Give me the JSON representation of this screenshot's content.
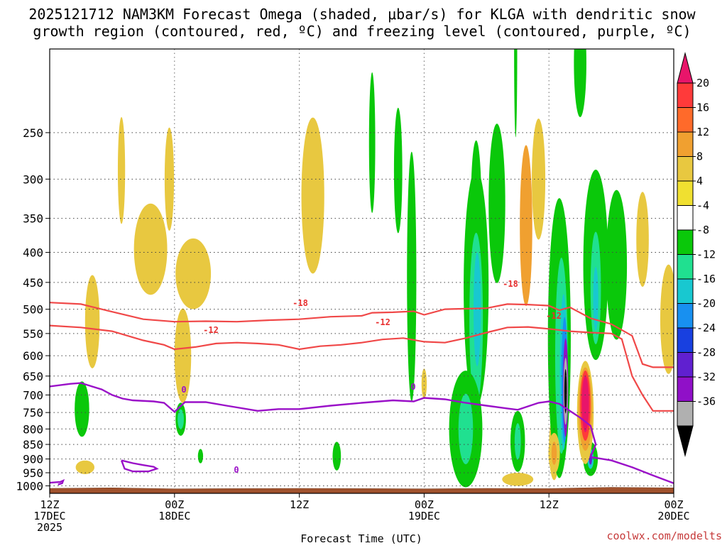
{
  "chart_data": {
    "type": "contour-cross-section",
    "title_line1": "2025121712 NAM3KM Forecast Omega (shaded, μbar/s) for KLGA with dendritic snow",
    "title_line2": "growth region (contoured, red, ºC) and freezing level (contoured, purple, ºC)",
    "xlabel": "Forecast Time (UTC)",
    "credit": "coolwx.com/modelts",
    "x_range_hours": [
      0,
      60
    ],
    "y_range_hpa": [
      1030,
      180
    ],
    "y_levels": [
      250,
      300,
      350,
      400,
      450,
      500,
      550,
      600,
      650,
      700,
      750,
      800,
      850,
      900,
      950,
      1000
    ],
    "y_tick_labels": [
      "250",
      "300",
      "350",
      "400",
      "450",
      "500",
      "550",
      "600",
      "650",
      "700",
      "750",
      "800",
      "850",
      "900",
      "950",
      "1000"
    ],
    "x_ticks": [
      {
        "hour": 0,
        "line1": "12Z",
        "line2": "17DEC",
        "line3": "2025"
      },
      {
        "hour": 12,
        "line1": "00Z",
        "line2": "18DEC",
        "line3": ""
      },
      {
        "hour": 24,
        "line1": "12Z",
        "line2": "",
        "line3": ""
      },
      {
        "hour": 36,
        "line1": "00Z",
        "line2": "19DEC",
        "line3": ""
      },
      {
        "hour": 48,
        "line1": "12Z",
        "line2": "",
        "line3": ""
      },
      {
        "hour": 60,
        "line1": "00Z",
        "line2": "20DEC",
        "line3": ""
      }
    ],
    "colorbar": {
      "labels": [
        "20",
        "16",
        "12",
        "8",
        "4",
        "-4",
        "-8",
        "-12",
        "-16",
        "-20",
        "-24",
        "-28",
        "-32",
        "-36"
      ],
      "colors": [
        "#e8156a",
        "#ff3a3a",
        "#ff6a2a",
        "#f0a030",
        "#e8c840",
        "#f0e030",
        "#ffffff",
        "#0ac80a",
        "#20e090",
        "#18c8d0",
        "#1890f0",
        "#1840e0",
        "#6020d0",
        "#9010c8",
        "#b0b0b0",
        "#000000"
      ]
    },
    "contour_labels": {
      "dgz_cold": "-18",
      "dgz_warm": "-12",
      "freezing": "0"
    },
    "dgz_minus18_hpa": [
      [
        0,
        487
      ],
      [
        3,
        490
      ],
      [
        6,
        505
      ],
      [
        9,
        520
      ],
      [
        12,
        525
      ],
      [
        15,
        524
      ],
      [
        18,
        525
      ],
      [
        21,
        522
      ],
      [
        24,
        520
      ],
      [
        27,
        515
      ],
      [
        30,
        513
      ],
      [
        31,
        507
      ],
      [
        33,
        506
      ],
      [
        35,
        504
      ],
      [
        36,
        511
      ],
      [
        38,
        500
      ],
      [
        40,
        499
      ],
      [
        42,
        498
      ],
      [
        44,
        490
      ],
      [
        46,
        491
      ],
      [
        48,
        493
      ],
      [
        49,
        502
      ],
      [
        50,
        496
      ],
      [
        52,
        518
      ],
      [
        54,
        530
      ],
      [
        56,
        555
      ],
      [
        57,
        620
      ],
      [
        58,
        628
      ],
      [
        60,
        628
      ]
    ],
    "dgz_minus12_hpa": [
      [
        0,
        533
      ],
      [
        3,
        537
      ],
      [
        6,
        545
      ],
      [
        9,
        565
      ],
      [
        11,
        575
      ],
      [
        12,
        585
      ],
      [
        14,
        580
      ],
      [
        16,
        572
      ],
      [
        18,
        570
      ],
      [
        20,
        572
      ],
      [
        22,
        575
      ],
      [
        24,
        585
      ],
      [
        26,
        578
      ],
      [
        28,
        575
      ],
      [
        30,
        570
      ],
      [
        32,
        563
      ],
      [
        34,
        560
      ],
      [
        36,
        568
      ],
      [
        38,
        570
      ],
      [
        40,
        560
      ],
      [
        42,
        548
      ],
      [
        44,
        537
      ],
      [
        46,
        536
      ],
      [
        48,
        540
      ],
      [
        50,
        545
      ],
      [
        52,
        548
      ],
      [
        54,
        550
      ],
      [
        55,
        562
      ],
      [
        56,
        650
      ],
      [
        57,
        700
      ],
      [
        58,
        745
      ],
      [
        60,
        745
      ]
    ],
    "freezing_hpa": [
      [
        0,
        677
      ],
      [
        2,
        670
      ],
      [
        3,
        668
      ],
      [
        5,
        685
      ],
      [
        6,
        700
      ],
      [
        7,
        710
      ],
      [
        8,
        715
      ],
      [
        10,
        718
      ],
      [
        11,
        722
      ],
      [
        12,
        748
      ],
      [
        13,
        720
      ],
      [
        15,
        720
      ],
      [
        17,
        730
      ],
      [
        20,
        745
      ],
      [
        22,
        740
      ],
      [
        24,
        740
      ],
      [
        27,
        730
      ],
      [
        30,
        722
      ],
      [
        33,
        715
      ],
      [
        35,
        718
      ],
      [
        36,
        708
      ],
      [
        38,
        712
      ],
      [
        40,
        722
      ],
      [
        42,
        730
      ],
      [
        44,
        738
      ],
      [
        45,
        742
      ],
      [
        46,
        732
      ],
      [
        47,
        722
      ],
      [
        48,
        718
      ],
      [
        49,
        725
      ],
      [
        50,
        745
      ],
      [
        51,
        765
      ],
      [
        52,
        790
      ],
      [
        52.5,
        850
      ],
      [
        52,
        893
      ],
      [
        54,
        905
      ],
      [
        56,
        930
      ],
      [
        58,
        960
      ],
      [
        60,
        990
      ]
    ],
    "freezing_loop_hpa": [
      [
        6.9,
        905
      ],
      [
        8,
        915
      ],
      [
        9,
        922
      ],
      [
        10,
        928
      ],
      [
        10.3,
        935
      ],
      [
        9.5,
        945
      ],
      [
        8,
        945
      ],
      [
        7.2,
        935
      ],
      [
        6.9,
        905
      ]
    ],
    "freezing_low_hpa": [
      [
        0,
        988
      ],
      [
        1,
        985
      ],
      [
        1.3,
        980
      ],
      [
        1.2,
        990
      ],
      [
        0.8,
        995
      ]
    ],
    "terrain_hpa": [
      [
        0,
        1010
      ],
      [
        6,
        1008
      ],
      [
        12,
        1012
      ],
      [
        18,
        1011
      ],
      [
        24,
        1010
      ],
      [
        30,
        1011
      ],
      [
        36,
        1012
      ],
      [
        42,
        1010
      ],
      [
        48,
        1011
      ],
      [
        54,
        1006
      ],
      [
        60,
        1008
      ]
    ],
    "blobs": [
      {
        "c": 4,
        "h": 6.9,
        "p": 290,
        "dh": 0.35,
        "dp": 60
      },
      {
        "c": 4,
        "h": 11.5,
        "p": 300,
        "dh": 0.45,
        "dp": 60
      },
      {
        "c": 4,
        "h": 9.7,
        "p": 395,
        "dh": 1.6,
        "dp": 70
      },
      {
        "c": 4,
        "h": 13.8,
        "p": 435,
        "dh": 1.7,
        "dp": 60
      },
      {
        "c": 4,
        "h": 12.8,
        "p": 600,
        "dh": 0.8,
        "dp": 110
      },
      {
        "c": 4,
        "h": 4.1,
        "p": 525,
        "dh": 0.7,
        "dp": 95
      },
      {
        "c": 4,
        "h": 3.4,
        "p": 930,
        "dh": 0.9,
        "dp": 25
      },
      {
        "c": 4,
        "h": 25.3,
        "p": 320,
        "dh": 1.1,
        "dp": 95
      },
      {
        "c": 4,
        "h": 36,
        "p": 670,
        "dh": 0.25,
        "dp": 40
      },
      {
        "c": 4,
        "h": 47,
        "p": 300,
        "dh": 0.65,
        "dp": 70
      },
      {
        "c": 3,
        "h": 45.8,
        "p": 360,
        "dh": 0.6,
        "dp": 110
      },
      {
        "c": 4,
        "h": 57,
        "p": 380,
        "dh": 0.6,
        "dp": 70
      },
      {
        "c": 4,
        "h": 59.5,
        "p": 520,
        "dh": 0.8,
        "dp": 110
      },
      {
        "c": 4,
        "h": 45,
        "p": 975,
        "dh": 1.5,
        "dp": 25
      },
      {
        "c": 4,
        "h": 48.5,
        "p": 860,
        "dh": 0.5,
        "dp": 110
      },
      {
        "c": 4,
        "h": 40,
        "p": 820,
        "dh": 0.3,
        "dp": 40
      },
      {
        "c": 7,
        "h": 3.1,
        "p": 740,
        "dh": 0.7,
        "dp": 80
      },
      {
        "c": 7,
        "h": 12.6,
        "p": 770,
        "dh": 0.5,
        "dp": 50
      },
      {
        "c": 8,
        "h": 12.6,
        "p": 770,
        "dh": 0.3,
        "dp": 30
      },
      {
        "c": 7,
        "h": 14.5,
        "p": 890,
        "dh": 0.25,
        "dp": 25
      },
      {
        "c": 7,
        "h": 27.6,
        "p": 890,
        "dh": 0.4,
        "dp": 50
      },
      {
        "c": 7,
        "h": 31,
        "p": 260,
        "dh": 0.3,
        "dp": 70
      },
      {
        "c": 7,
        "h": 33.5,
        "p": 290,
        "dh": 0.4,
        "dp": 70
      },
      {
        "c": 7,
        "h": 34.8,
        "p": 440,
        "dh": 0.45,
        "dp": 200
      },
      {
        "c": 7,
        "h": 41,
        "p": 330,
        "dh": 0.5,
        "dp": 80
      },
      {
        "c": 7,
        "h": 41,
        "p": 460,
        "dh": 1.2,
        "dp": 200
      },
      {
        "c": 8,
        "h": 41,
        "p": 520,
        "dh": 0.65,
        "dp": 170
      },
      {
        "c": 9,
        "h": 41.1,
        "p": 500,
        "dh": 0.35,
        "dp": 110
      },
      {
        "c": 7,
        "h": 40,
        "p": 800,
        "dh": 1.6,
        "dp": 180
      },
      {
        "c": 8,
        "h": 40,
        "p": 800,
        "dh": 0.7,
        "dp": 110
      },
      {
        "c": 7,
        "h": 43,
        "p": 330,
        "dh": 0.8,
        "dp": 100
      },
      {
        "c": 7,
        "h": 44.8,
        "p": 180,
        "dh": 0.15,
        "dp": 60
      },
      {
        "c": 7,
        "h": 45,
        "p": 840,
        "dh": 0.7,
        "dp": 100
      },
      {
        "c": 8,
        "h": 45,
        "p": 840,
        "dh": 0.3,
        "dp": 60
      },
      {
        "c": 7,
        "h": 49,
        "p": 560,
        "dh": 1.1,
        "dp": 280
      },
      {
        "c": 8,
        "h": 49.2,
        "p": 600,
        "dh": 0.6,
        "dp": 220
      },
      {
        "c": 9,
        "h": 49.4,
        "p": 640,
        "dh": 0.35,
        "dp": 190
      },
      {
        "c": 10,
        "h": 49.5,
        "p": 660,
        "dh": 0.3,
        "dp": 160
      },
      {
        "c": 13,
        "h": 49.6,
        "p": 680,
        "dh": 0.25,
        "dp": 130
      },
      {
        "c": 14,
        "h": 49.6,
        "p": 690,
        "dh": 0.2,
        "dp": 90
      },
      {
        "c": 15,
        "h": 49.6,
        "p": 690,
        "dh": 0.12,
        "dp": 60
      },
      {
        "c": 7,
        "h": 51,
        "p": 190,
        "dh": 0.6,
        "dp": 40
      },
      {
        "c": 7,
        "h": 52.5,
        "p": 420,
        "dh": 1.2,
        "dp": 150
      },
      {
        "c": 8,
        "h": 52.5,
        "p": 460,
        "dh": 0.5,
        "dp": 100
      },
      {
        "c": 9,
        "h": 52.5,
        "p": 480,
        "dh": 0.25,
        "dp": 60
      },
      {
        "c": 7,
        "h": 54.5,
        "p": 420,
        "dh": 1.0,
        "dp": 120
      },
      {
        "c": 7,
        "h": 52,
        "p": 900,
        "dh": 0.7,
        "dp": 60
      },
      {
        "c": 9,
        "h": 52,
        "p": 900,
        "dh": 0.3,
        "dp": 35
      },
      {
        "c": 12,
        "h": 52,
        "p": 900,
        "dh": 0.15,
        "dp": 20
      },
      {
        "c": 4,
        "h": 51.5,
        "p": 750,
        "dh": 0.8,
        "dp": 150
      },
      {
        "c": 3,
        "h": 51.5,
        "p": 740,
        "dh": 0.65,
        "dp": 120
      },
      {
        "c": 1,
        "h": 51.5,
        "p": 730,
        "dh": 0.5,
        "dp": 100
      },
      {
        "c": 0,
        "h": 51.5,
        "p": 725,
        "dh": 0.35,
        "dp": 80
      },
      {
        "c": 4,
        "h": 48.5,
        "p": 880,
        "dh": 0.55,
        "dp": 70
      },
      {
        "c": 3,
        "h": 48.5,
        "p": 880,
        "dh": 0.25,
        "dp": 40
      }
    ]
  }
}
